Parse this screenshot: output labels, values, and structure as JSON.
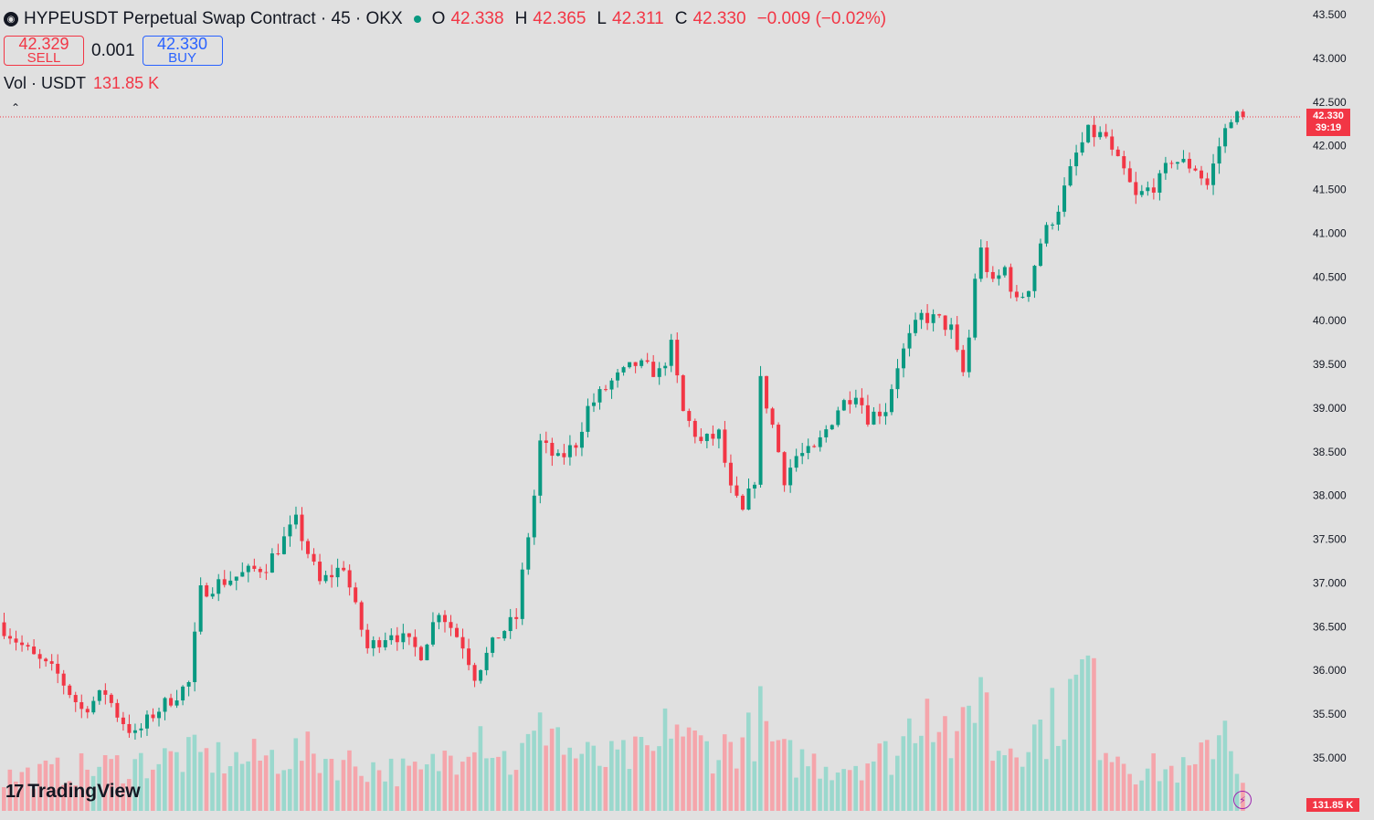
{
  "legend": {
    "symbol_icon": "okx-logo-icon",
    "title": "HYPEUSDT Perpetual Swap Contract · 45 · OKX",
    "o_key": "O",
    "o_val": "42.338",
    "h_key": "H",
    "h_val": "42.365",
    "l_key": "L",
    "l_val": "42.311",
    "c_key": "C",
    "c_val": "42.330",
    "change": "−0.009 (−0.02%)"
  },
  "trade": {
    "sell_price": "42.329",
    "sell_label": "SELL",
    "quantity": "0.001",
    "buy_price": "42.330",
    "buy_label": "BUY"
  },
  "volume_legend": {
    "label": "Vol · USDT",
    "value": "131.85 K"
  },
  "last_price_badge": {
    "price": "42.330",
    "countdown": "39:19"
  },
  "volume_badge": "131.85 K",
  "logo_text": "TradingView",
  "colors": {
    "up": "#089981",
    "down": "#f23645",
    "vol_up": "#9ad8cd",
    "vol_down": "#f5a5ab",
    "background": "#e0e0e0",
    "text": "#131722"
  },
  "chart_data": {
    "type": "candlestick",
    "title": "HYPEUSDT Perpetual Swap Contract · 45 · OKX",
    "interval_minutes": 45,
    "last_price": 42.33,
    "ylim": [
      34.7,
      43.6
    ],
    "yticks": [
      "43.500",
      "43.000",
      "42.500",
      "42.000",
      "41.500",
      "41.000",
      "40.500",
      "40.000",
      "39.500",
      "39.000",
      "38.500",
      "38.000",
      "37.500",
      "37.000",
      "36.500",
      "36.000",
      "35.500",
      "35.000"
    ],
    "anchors": [
      [
        0,
        36.55
      ],
      [
        6,
        36.15
      ],
      [
        10,
        35.95
      ],
      [
        14,
        35.55
      ],
      [
        18,
        35.75
      ],
      [
        20,
        35.5
      ],
      [
        23,
        35.25
      ],
      [
        26,
        35.5
      ],
      [
        32,
        35.85
      ],
      [
        34,
        36.9
      ],
      [
        37,
        37.0
      ],
      [
        45,
        37.2
      ],
      [
        50,
        37.7
      ],
      [
        54,
        37.0
      ],
      [
        58,
        37.2
      ],
      [
        60,
        36.7
      ],
      [
        62,
        36.25
      ],
      [
        66,
        36.45
      ],
      [
        71,
        36.2
      ],
      [
        74,
        36.7
      ],
      [
        78,
        36.3
      ],
      [
        80,
        35.95
      ],
      [
        84,
        36.4
      ],
      [
        87,
        36.6
      ],
      [
        88,
        37.1
      ],
      [
        90,
        38.0
      ],
      [
        91,
        38.6
      ],
      [
        94,
        38.4
      ],
      [
        97,
        38.6
      ],
      [
        99,
        39.0
      ],
      [
        103,
        39.3
      ],
      [
        107,
        39.5
      ],
      [
        111,
        39.4
      ],
      [
        113,
        39.7
      ],
      [
        115,
        38.95
      ],
      [
        118,
        38.6
      ],
      [
        121,
        38.7
      ],
      [
        123,
        38.05
      ],
      [
        125,
        37.8
      ],
      [
        127,
        38.2
      ],
      [
        128,
        39.3
      ],
      [
        130,
        38.8
      ],
      [
        132,
        38.2
      ],
      [
        134,
        38.45
      ],
      [
        137,
        38.5
      ],
      [
        141,
        39.0
      ],
      [
        144,
        39.2
      ],
      [
        146,
        38.9
      ],
      [
        149,
        39.0
      ],
      [
        151,
        39.5
      ],
      [
        153,
        39.8
      ],
      [
        155,
        40.05
      ],
      [
        158,
        40.0
      ],
      [
        160,
        39.9
      ],
      [
        161,
        39.6
      ],
      [
        162,
        39.4
      ],
      [
        163,
        39.8
      ],
      [
        164,
        40.5
      ],
      [
        165,
        40.8
      ],
      [
        167,
        40.4
      ],
      [
        169,
        40.6
      ],
      [
        171,
        40.2
      ],
      [
        173,
        40.4
      ],
      [
        175,
        40.9
      ],
      [
        178,
        41.3
      ],
      [
        180,
        41.7
      ],
      [
        181,
        41.9
      ],
      [
        183,
        42.15
      ],
      [
        186,
        42.1
      ],
      [
        187,
        41.9
      ],
      [
        189,
        41.7
      ],
      [
        191,
        41.4
      ],
      [
        195,
        41.6
      ],
      [
        197,
        41.85
      ],
      [
        201,
        41.75
      ],
      [
        203,
        41.55
      ],
      [
        205,
        42.0
      ],
      [
        207,
        42.35
      ],
      [
        208,
        42.33
      ]
    ],
    "volume_scale_note": "relative volume 0-1 (1 = highest bar, about 220K)",
    "volume_anchors": [
      [
        0,
        0.22
      ],
      [
        20,
        0.3
      ],
      [
        31,
        0.36
      ],
      [
        40,
        0.33
      ],
      [
        50,
        0.38
      ],
      [
        60,
        0.3
      ],
      [
        70,
        0.24
      ],
      [
        76,
        0.4
      ],
      [
        79,
        0.6
      ],
      [
        85,
        0.3
      ],
      [
        90,
        0.5
      ],
      [
        92,
        0.66
      ],
      [
        94,
        0.4
      ],
      [
        100,
        0.32
      ],
      [
        110,
        0.38
      ],
      [
        112,
        0.64
      ],
      [
        115,
        0.45
      ],
      [
        120,
        0.4
      ],
      [
        125,
        0.48
      ],
      [
        127,
        0.6
      ],
      [
        130,
        0.36
      ],
      [
        140,
        0.3
      ],
      [
        150,
        0.38
      ],
      [
        155,
        0.8
      ],
      [
        158,
        0.55
      ],
      [
        160,
        0.38
      ],
      [
        164,
        0.94
      ],
      [
        166,
        0.4
      ],
      [
        175,
        0.55
      ],
      [
        180,
        0.78
      ],
      [
        182,
        0.96
      ],
      [
        184,
        0.52
      ],
      [
        190,
        0.28
      ],
      [
        200,
        0.26
      ],
      [
        205,
        0.62
      ],
      [
        208,
        0.2
      ]
    ]
  }
}
